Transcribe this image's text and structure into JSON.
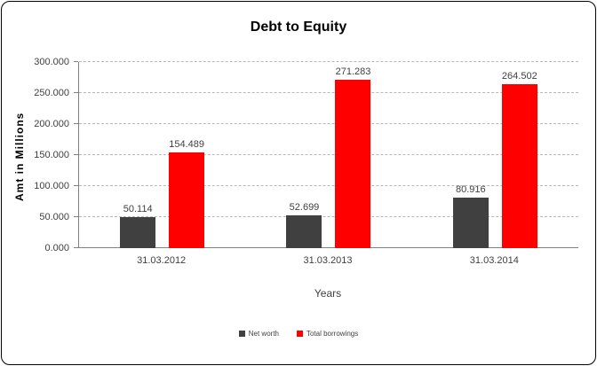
{
  "chart_data": {
    "type": "bar",
    "title": "Debt to Equity",
    "xlabel": "Years",
    "ylabel": "Amt in Millions",
    "categories": [
      "31.03.2012",
      "31.03.2013",
      "31.03.2014"
    ],
    "series": [
      {
        "name": "Net worth",
        "color": "#404040",
        "values": [
          50.114,
          52.699,
          80.916
        ]
      },
      {
        "name": "Total borrowings",
        "color": "#ff0000",
        "values": [
          154.489,
          271.283,
          264.502
        ]
      }
    ],
    "value_labels": [
      [
        "50.114",
        "154.489"
      ],
      [
        "52.699",
        "271.283"
      ],
      [
        "80.916",
        "264.502"
      ]
    ],
    "yticks": [
      "0.000",
      "50.000",
      "100.000",
      "150.000",
      "200.000",
      "250.000",
      "300.000"
    ],
    "ylim": [
      0,
      300
    ],
    "grid": "dashed-horizontal",
    "legend_position": "bottom"
  }
}
